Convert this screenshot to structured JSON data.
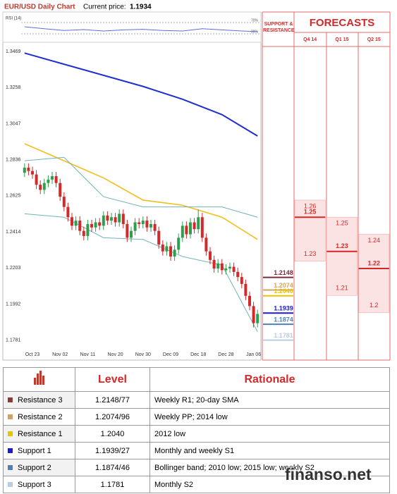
{
  "chart_data": [
    {
      "type": "candlestick",
      "title": "EUR/USD Daily Chart",
      "subtitle": "Current price:",
      "current_price": 1.1934,
      "categories": [
        null,
        null,
        "Oct 23",
        null,
        null,
        null,
        null,
        null,
        null,
        "Nov 02",
        null,
        null,
        null,
        null,
        null,
        null,
        "Nov 11",
        null,
        null,
        null,
        null,
        null,
        null,
        "Nov 20",
        null,
        null,
        null,
        null,
        null,
        null,
        "Nov 30",
        null,
        null,
        null,
        null,
        null,
        null,
        "Dec 09",
        null,
        null,
        null,
        null,
        null,
        null,
        "Dec 18",
        null,
        null,
        null,
        null,
        null,
        null,
        "Dec 28",
        null,
        null,
        null,
        null,
        null,
        null,
        "Jan 06",
        null
      ],
      "open": [
        1.276,
        1.279,
        1.277,
        1.275,
        1.269,
        1.266,
        1.27,
        1.272,
        1.274,
        1.27,
        1.262,
        1.256,
        1.25,
        1.245,
        1.248,
        1.242,
        1.239,
        1.246,
        1.244,
        1.247,
        1.245,
        1.251,
        1.248,
        1.25,
        1.247,
        1.252,
        1.246,
        1.238,
        1.242,
        1.247,
        1.246,
        1.248,
        1.244,
        1.246,
        1.242,
        1.234,
        1.23,
        1.233,
        1.227,
        1.231,
        1.238,
        1.245,
        1.24,
        1.247,
        1.243,
        1.25,
        1.238,
        1.23,
        1.225,
        1.22,
        1.223,
        1.219,
        1.22,
        1.221,
        1.218,
        1.215,
        1.211,
        1.204,
        1.198,
        1.188
      ],
      "high": [
        1.2815,
        1.2815,
        1.2795,
        1.2775,
        1.2715,
        1.2725,
        1.2745,
        1.2765,
        1.2765,
        1.2725,
        1.2645,
        1.2585,
        1.2525,
        1.2505,
        1.2505,
        1.2445,
        1.2485,
        1.2485,
        1.2495,
        1.2495,
        1.2535,
        1.2535,
        1.2525,
        1.2525,
        1.2545,
        1.2545,
        1.2485,
        1.2445,
        1.2495,
        1.2495,
        1.2505,
        1.2505,
        1.2485,
        1.2485,
        1.2445,
        1.2365,
        1.2355,
        1.2355,
        1.2335,
        1.2405,
        1.2475,
        1.2475,
        1.2495,
        1.2495,
        1.2545,
        1.2525,
        1.2405,
        1.2325,
        1.2275,
        1.2255,
        1.2255,
        1.2225,
        1.2235,
        1.2235,
        1.2205,
        1.2175,
        1.2135,
        1.2065,
        1.2005,
        1.1959
      ],
      "low": [
        1.2735,
        1.2745,
        1.2725,
        1.2665,
        1.2635,
        1.2635,
        1.2675,
        1.2695,
        1.2675,
        1.2595,
        1.2535,
        1.2475,
        1.2425,
        1.2425,
        1.2395,
        1.2365,
        1.2365,
        1.2415,
        1.2415,
        1.2425,
        1.2425,
        1.2455,
        1.2455,
        1.2445,
        1.2445,
        1.2435,
        1.2355,
        1.2355,
        1.2395,
        1.2435,
        1.2435,
        1.2415,
        1.2415,
        1.2395,
        1.2315,
        1.2275,
        1.2275,
        1.2245,
        1.2245,
        1.2285,
        1.2355,
        1.2375,
        1.2375,
        1.2405,
        1.2405,
        1.2355,
        1.2275,
        1.2225,
        1.2175,
        1.2175,
        1.2165,
        1.2165,
        1.2175,
        1.2155,
        1.2125,
        1.2085,
        1.2015,
        1.1955,
        1.1855,
        1.1855
      ],
      "close": [
        1.279,
        1.277,
        1.275,
        1.269,
        1.266,
        1.27,
        1.272,
        1.274,
        1.27,
        1.262,
        1.256,
        1.25,
        1.245,
        1.248,
        1.242,
        1.239,
        1.246,
        1.244,
        1.247,
        1.245,
        1.251,
        1.248,
        1.25,
        1.247,
        1.252,
        1.246,
        1.238,
        1.242,
        1.247,
        1.246,
        1.248,
        1.244,
        1.246,
        1.242,
        1.234,
        1.23,
        1.233,
        1.227,
        1.231,
        1.238,
        1.245,
        1.24,
        1.247,
        1.243,
        1.25,
        1.238,
        1.23,
        1.225,
        1.22,
        1.223,
        1.219,
        1.22,
        1.221,
        1.218,
        1.215,
        1.211,
        1.204,
        1.198,
        1.188,
        1.1934
      ],
      "up_color": "#2e9e4f",
      "down_color": "#d02a2a",
      "ylim": [
        1.173,
        1.3515
      ],
      "yticks": [
        1.3469,
        1.3258,
        1.3047,
        1.2836,
        1.2625,
        1.2414,
        1.2203,
        1.1992,
        1.1781
      ],
      "overlays": [
        {
          "color": "#1f2fd0",
          "x": [
            0,
            10,
            20,
            30,
            40,
            50,
            59
          ],
          "values": [
            1.346,
            1.3395,
            1.333,
            1.3265,
            1.319,
            1.31,
            1.2975
          ]
        },
        {
          "color": "#f2be1a",
          "x": [
            0,
            10,
            20,
            30,
            40,
            50,
            59
          ],
          "values": [
            1.293,
            1.283,
            1.273,
            1.26,
            1.257,
            1.25,
            1.237
          ]
        },
        {
          "color": "#6fb3b8",
          "x": [
            0,
            10,
            20,
            30,
            40,
            50,
            59
          ],
          "values": [
            1.283,
            1.285,
            1.262,
            1.256,
            1.256,
            1.256,
            1.25
          ]
        },
        {
          "color": "#6fb3b8",
          "x": [
            0,
            10,
            20,
            30,
            40,
            50,
            59
          ],
          "values": [
            1.252,
            1.25,
            1.238,
            1.237,
            1.227,
            1.222,
            1.183
          ]
        }
      ]
    },
    {
      "type": "line",
      "title": "RSI (14)",
      "color": "#5b6fd6",
      "ylim": [
        0,
        100
      ],
      "yticks": [
        {
          "value": 70,
          "label": "70%"
        },
        {
          "value": 30,
          "label": "30%"
        }
      ],
      "x": [
        0,
        5,
        10,
        15,
        20,
        25,
        30,
        35,
        40,
        45,
        50,
        55,
        59
      ],
      "values": [
        55,
        48,
        42,
        45,
        40,
        44,
        46,
        42,
        40,
        48,
        44,
        40,
        38
      ]
    },
    {
      "type": "levels",
      "title": "SUPPORT & RESISTANCE",
      "values": [
        1.2148,
        1.2074,
        1.204,
        1.1939,
        1.1874,
        1.1781
      ],
      "value_labels": [
        "1.2148",
        "1.2074",
        "1.2040",
        "1.1939",
        "1.1874",
        "1.1781"
      ],
      "colors": [
        "#7a2a3a",
        "#d4a35a",
        "#e8c400",
        "#1a1ad8",
        "#4f7fb5",
        "#b8cce4"
      ]
    },
    {
      "type": "range",
      "title": "FORECASTS",
      "categories": [
        "Q4 14",
        "Q1 15",
        "Q2 15"
      ],
      "high": [
        1.26,
        1.25,
        1.24
      ],
      "mid": [
        1.25,
        1.23,
        1.22
      ],
      "low": [
        1.23,
        1.21,
        1.2
      ],
      "color": "#d42828"
    }
  ],
  "table": {
    "header": [
      "Level",
      "Rationale"
    ],
    "rows": [
      [
        "Resistance 3",
        "1.2148/77",
        "Weekly R1; 20-day SMA"
      ],
      [
        "Resistance 2",
        "1.2074/96",
        "Weekly PP; 2014 low"
      ],
      [
        "Resistance 1",
        "1.2040",
        "2012 low"
      ],
      [
        "Support 1",
        "1.1939/27",
        "Monthly and weekly S1"
      ],
      [
        "Support 2",
        "1.1874/46",
        "Bollinger band; 2010 low; 2015 low; weekly S2"
      ],
      [
        "Support 3",
        "1.1781",
        "Monthly S2"
      ]
    ],
    "colors": [
      "#8b3a3a",
      "#d4a35a",
      "#e8c400",
      "#1a1ad8",
      "#4f7fb5",
      "#b8cce4"
    ]
  },
  "watermark": "finanso.net"
}
